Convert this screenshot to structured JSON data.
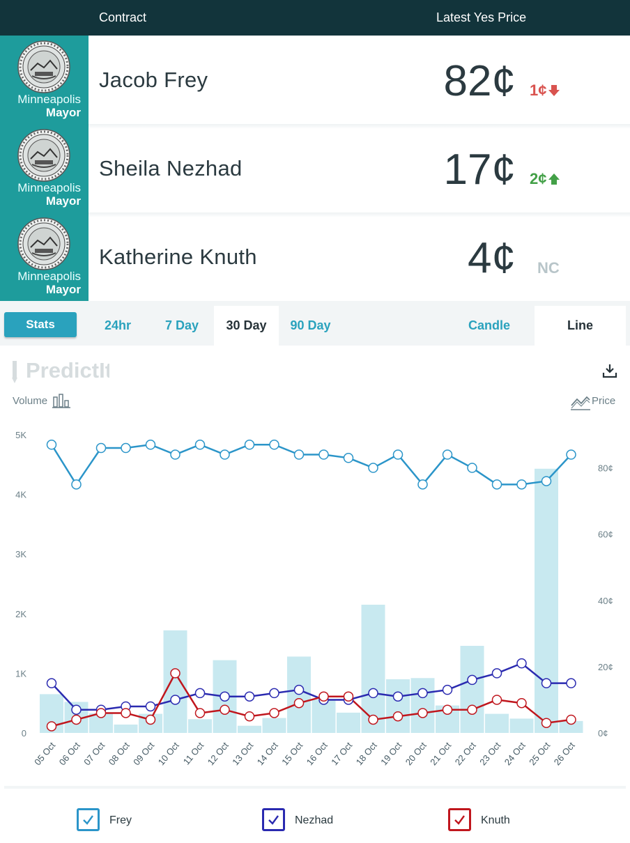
{
  "header": {
    "contract_label": "Contract",
    "price_label": "Latest Yes Price"
  },
  "contracts": [
    {
      "badge_city": "Minneapolis",
      "badge_office": "Mayor",
      "name": "Jacob Frey",
      "price": "82¢",
      "change": "1¢",
      "direction": "down"
    },
    {
      "badge_city": "Minneapolis",
      "badge_office": "Mayor",
      "name": "Sheila Nezhad",
      "price": "17¢",
      "change": "2¢",
      "direction": "up"
    },
    {
      "badge_city": "Minneapolis",
      "badge_office": "Mayor",
      "name": "Katherine Knuth",
      "price": "4¢",
      "change": "NC",
      "direction": "none"
    }
  ],
  "tabs": {
    "stats": "Stats",
    "ranges": [
      "24hr",
      "7 Day",
      "30 Day",
      "90 Day"
    ],
    "active_range": "30 Day",
    "views": [
      "Candle",
      "Line"
    ],
    "active_view": "Line"
  },
  "logo_text": "PredictIt",
  "labels": {
    "volume": "Volume",
    "price": "Price"
  },
  "colors": {
    "frey": "#2b95c9",
    "nezhad": "#2a2ab0",
    "knuth": "#c0161d",
    "volume": "#c8e9f0",
    "accent": "#2aa2bd",
    "header_bg": "#12343b",
    "badge_bg": "#1e9c9c"
  },
  "icons": {
    "download": "download-icon",
    "volume": "bar-chart-icon",
    "price": "line-chart-icon",
    "check": "check-icon",
    "seal": "city-seal-icon"
  },
  "chart_data": {
    "type": "line",
    "categories": [
      "05 Oct",
      "06 Oct",
      "07 Oct",
      "08 Oct",
      "09 Oct",
      "10 Oct",
      "11 Oct",
      "12 Oct",
      "13 Oct",
      "14 Oct",
      "15 Oct",
      "16 Oct",
      "17 Oct",
      "18 Oct",
      "19 Oct",
      "20 Oct",
      "21 Oct",
      "22 Oct",
      "23 Oct",
      "24 Oct",
      "25 Oct",
      "26 Oct"
    ],
    "volume": [
      650,
      520,
      330,
      140,
      320,
      1720,
      230,
      1220,
      120,
      250,
      1280,
      560,
      340,
      2150,
      900,
      920,
      460,
      1460,
      320,
      240,
      4430,
      200
    ],
    "series": [
      {
        "name": "Frey",
        "values": [
          87,
          75,
          86,
          86,
          87,
          84,
          87,
          84,
          87,
          87,
          84,
          84,
          83,
          80,
          84,
          75,
          84,
          80,
          75,
          75,
          76,
          84
        ]
      },
      {
        "name": "Nezhad",
        "values": [
          15,
          7,
          7,
          8,
          8,
          10,
          12,
          11,
          11,
          12,
          13,
          10,
          10,
          12,
          11,
          12,
          13,
          16,
          18,
          21,
          15,
          15
        ]
      },
      {
        "name": "Knuth",
        "values": [
          2,
          4,
          6,
          6,
          4,
          18,
          6,
          7,
          5,
          6,
          9,
          11,
          11,
          4,
          5,
          6,
          7,
          7,
          10,
          9,
          3,
          4
        ]
      }
    ],
    "y_left": {
      "ticks": [
        "0",
        "1K",
        "2K",
        "3K",
        "4K",
        "5K"
      ],
      "values": [
        0,
        1000,
        2000,
        3000,
        4000,
        5000
      ]
    },
    "y_right": {
      "ticks": [
        "0¢",
        "20¢",
        "40¢",
        "60¢",
        "80¢"
      ],
      "values": [
        0,
        20,
        40,
        60,
        80
      ],
      "max": 90
    }
  },
  "legend": [
    "Frey",
    "Nezhad",
    "Knuth"
  ]
}
